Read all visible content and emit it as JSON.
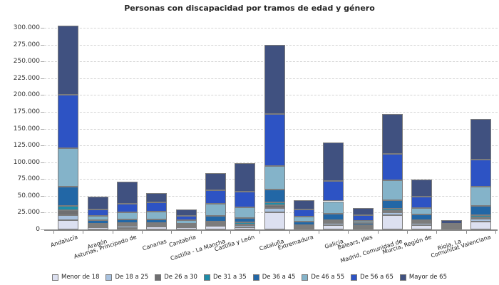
{
  "title": "Personas con discapacidad por tramos de edad y género",
  "chart_data": {
    "type": "bar",
    "stacked": true,
    "title": "Personas con discapacidad por tramos de edad y género",
    "xlabel": "",
    "ylabel": "",
    "ylim": [
      0,
      300000
    ],
    "ytick_step": 25000,
    "ytick_labels": [
      "0",
      "25.000",
      "50.000",
      "75.000",
      "100.000",
      "125.000",
      "150.000",
      "175.000",
      "200.000",
      "225.000",
      "250.000",
      "275.000",
      "300.000"
    ],
    "grid": "horizontal-dashed",
    "legend_position": "bottom",
    "categories": [
      "Andalucía",
      "Aragón",
      "Asturias, Principado de",
      "Canarias",
      "Cantabria",
      "Castilla - La Mancha",
      "Castilla y León",
      "Cataluña",
      "Extremadura",
      "Galicia",
      "Balears, Illes",
      "Madrid, Comunidad de",
      "Murcia, Región de",
      "Rioja, La",
      "Comunitat Valenciana"
    ],
    "series": [
      {
        "name": "Menor de 18",
        "color": "#dce0f0",
        "values": [
          13500,
          3200,
          2500,
          4200,
          2900,
          5600,
          3200,
          25400,
          2500,
          6300,
          1700,
          20800,
          6700,
          1500,
          11300
        ]
      },
      {
        "name": "De 18 a 25",
        "color": "#a9c2df",
        "values": [
          7800,
          2500,
          2800,
          2300,
          1700,
          2100,
          2800,
          6000,
          1800,
          2800,
          1800,
          4200,
          2900,
          700,
          4900
        ]
      },
      {
        "name": "De 26 a 30",
        "color": "#6f6f71",
        "values": [
          7000,
          1500,
          1800,
          2100,
          900,
          1800,
          1800,
          4500,
          1300,
          2200,
          1100,
          2700,
          1800,
          400,
          2100
        ]
      },
      {
        "name": "De 31 a 35",
        "color": "#1e8ca8",
        "values": [
          7100,
          1500,
          2500,
          1200,
          800,
          2400,
          2500,
          4200,
          1000,
          2400,
          1600,
          2900,
          2400,
          400,
          2500
        ]
      },
      {
        "name": "De 36 a 45",
        "color": "#2267a6",
        "values": [
          28500,
          5300,
          5300,
          5300,
          2500,
          8100,
          6300,
          19300,
          4700,
          9500,
          2900,
          13000,
          8800,
          1300,
          14100
        ]
      },
      {
        "name": "De 46 a 55",
        "color": "#84b3c9",
        "values": [
          57000,
          6000,
          10900,
          11300,
          4600,
          18300,
          16500,
          34500,
          7700,
          18700,
          3500,
          29300,
          8900,
          1700,
          29200
        ]
      },
      {
        "name": "De 56 a 65",
        "color": "#2d53c4",
        "values": [
          79200,
          9800,
          12000,
          14000,
          7000,
          20000,
          22900,
          78200,
          10600,
          30700,
          8100,
          39400,
          17500,
          2500,
          40200
        ]
      },
      {
        "name": "Mayor de 65",
        "color": "#405180",
        "values": [
          103500,
          19400,
          32800,
          13500,
          8900,
          25800,
          43000,
          102000,
          14000,
          56300,
          11600,
          59100,
          24700,
          5500,
          59700
        ]
      }
    ]
  }
}
